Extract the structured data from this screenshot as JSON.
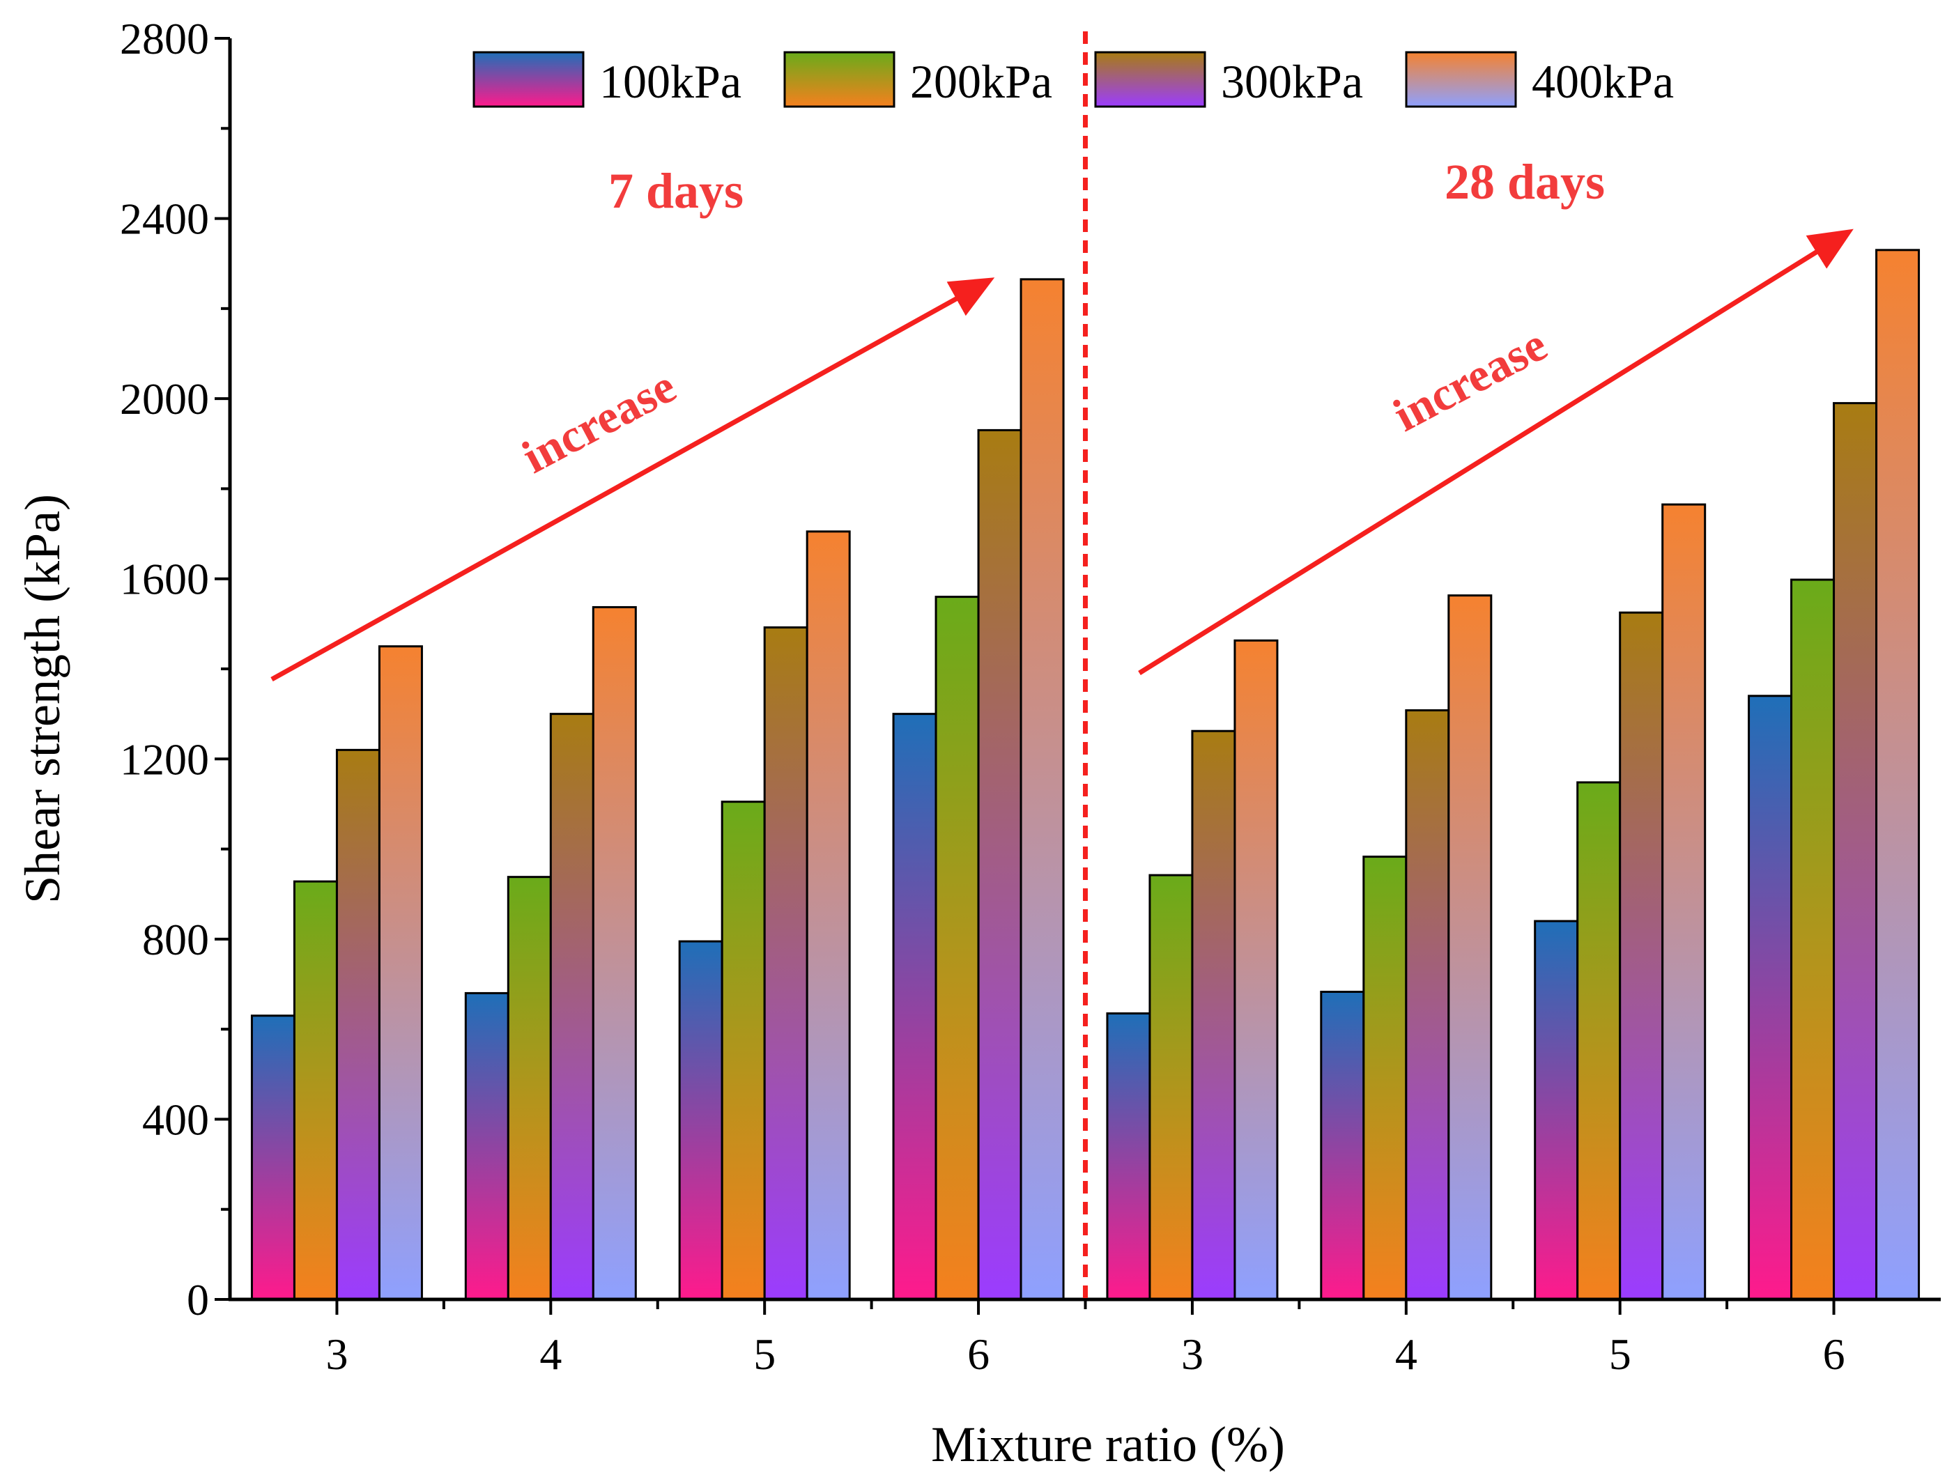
{
  "chart_data": {
    "type": "bar",
    "title": "",
    "xlabel": "Mixture ratio (%)",
    "ylabel": "Shear strength (kPa)",
    "ylim": [
      0,
      2800
    ],
    "yticks": [
      0,
      400,
      800,
      1200,
      1600,
      2000,
      2400,
      2800
    ],
    "groups": [
      {
        "label": "7 days",
        "categories": [
          "3",
          "4",
          "5",
          "6"
        ]
      },
      {
        "label": "28 days",
        "categories": [
          "3",
          "4",
          "5",
          "6"
        ]
      }
    ],
    "series": [
      {
        "name": "100kPa",
        "values": [
          630,
          680,
          795,
          1300,
          635,
          683,
          840,
          1340
        ],
        "gradient": [
          "#1f6fb8",
          "#ff1a8c"
        ]
      },
      {
        "name": "200kPa",
        "values": [
          928,
          938,
          1105,
          1560,
          942,
          983,
          1148,
          1598
        ],
        "gradient": [
          "#6aab1a",
          "#f5801e"
        ]
      },
      {
        "name": "300kPa",
        "values": [
          1220,
          1300,
          1492,
          1930,
          1262,
          1308,
          1525,
          1990
        ],
        "gradient": [
          "#a87c12",
          "#9b3cff"
        ]
      },
      {
        "name": "400kPa",
        "values": [
          1450,
          1537,
          1705,
          2265,
          1463,
          1563,
          1765,
          2330
        ],
        "gradient": [
          "#f58230",
          "#8ea0ff"
        ]
      }
    ],
    "annotations": [
      {
        "text": "7 days"
      },
      {
        "text": "28 days"
      },
      {
        "text": "increase"
      },
      {
        "text": "increase"
      }
    ],
    "legend_position": "top-center",
    "divider": "dashed red line between 7 days and 28 days groups"
  }
}
